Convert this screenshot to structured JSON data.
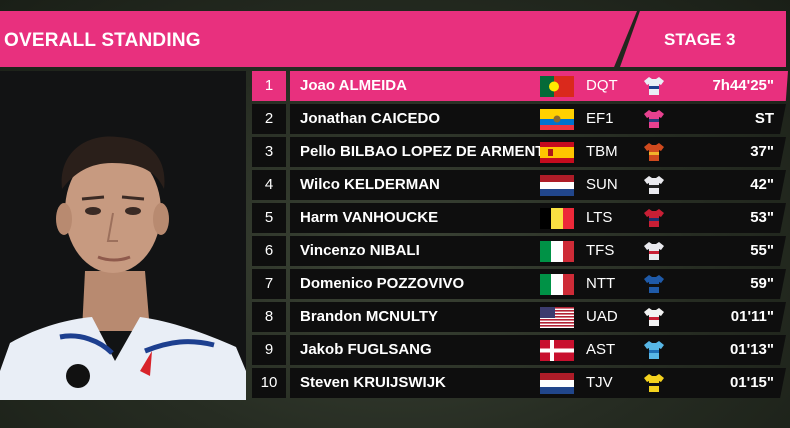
{
  "header": {
    "title": "OVERALL STANDING",
    "stage": "STAGE 3"
  },
  "colors": {
    "accent": "#e8307e",
    "row_bg": "#0e0e0e",
    "text": "#ffffff"
  },
  "rows": [
    {
      "rank": "1",
      "name": "Joao ALMEIDA",
      "team": "DQT",
      "time": "7h44'25\"",
      "country": "portugal"
    },
    {
      "rank": "2",
      "name": "Jonathan CAICEDO",
      "team": "EF1",
      "time": "ST",
      "country": "ecuador"
    },
    {
      "rank": "3",
      "name": "Pello BILBAO LOPEZ DE ARMENTIA",
      "team": "TBM",
      "time": "37\"",
      "country": "spain"
    },
    {
      "rank": "4",
      "name": "Wilco KELDERMAN",
      "team": "SUN",
      "time": "42\"",
      "country": "netherlands"
    },
    {
      "rank": "5",
      "name": "Harm VANHOUCKE",
      "team": "LTS",
      "time": "53\"",
      "country": "belgium"
    },
    {
      "rank": "6",
      "name": "Vincenzo NIBALI",
      "team": "TFS",
      "time": "55\"",
      "country": "italy"
    },
    {
      "rank": "7",
      "name": "Domenico POZZOVIVO",
      "team": "NTT",
      "time": "59\"",
      "country": "italy"
    },
    {
      "rank": "8",
      "name": "Brandon MCNULTY",
      "team": "UAD",
      "time": "01'11\"",
      "country": "usa"
    },
    {
      "rank": "9",
      "name": "Jakob FUGLSANG",
      "team": "AST",
      "time": "01'13\"",
      "country": "denmark"
    },
    {
      "rank": "10",
      "name": "Steven KRUIJSWIJK",
      "team": "TJV",
      "time": "01'15\"",
      "country": "netherlands"
    }
  ]
}
